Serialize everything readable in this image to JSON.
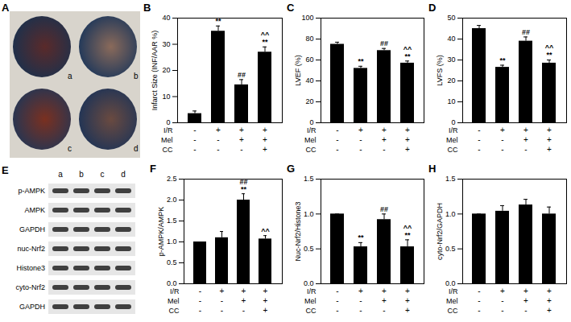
{
  "chart_data": [
    {
      "type": "bar",
      "panel": "B",
      "ylabel": "Infarct Size (INF/AAR %)",
      "categories": [
        null,
        null,
        null,
        null
      ],
      "values": [
        3.5,
        35,
        14.5,
        27
      ],
      "errors": [
        1,
        2,
        2,
        2
      ],
      "color": "#000000",
      "annotations": [
        [],
        [
          "**"
        ],
        [
          "##"
        ],
        [
          "^^",
          "**"
        ]
      ],
      "conditions": [
        {
          "name": "I/R",
          "signs": [
            "-",
            "+",
            "+",
            "+"
          ]
        },
        {
          "name": "Mel",
          "signs": [
            "-",
            "-",
            "+",
            "+"
          ]
        },
        {
          "name": "CC",
          "signs": [
            "-",
            "-",
            "-",
            "+"
          ]
        }
      ],
      "ylim": [
        0,
        40
      ],
      "yticks": [
        0,
        10,
        20,
        30,
        40
      ]
    },
    {
      "type": "bar",
      "panel": "C",
      "ylabel": "LVEF (%)",
      "categories": [
        null,
        null,
        null,
        null
      ],
      "values": [
        75,
        52,
        69,
        57
      ],
      "errors": [
        2,
        2,
        2,
        2
      ],
      "color": "#000000",
      "annotations": [
        [],
        [
          "**"
        ],
        [
          "##"
        ],
        [
          "^^",
          "**"
        ]
      ],
      "conditions": [
        {
          "name": "I/R",
          "signs": [
            "-",
            "+",
            "+",
            "+"
          ]
        },
        {
          "name": "Mel",
          "signs": [
            "-",
            "-",
            "+",
            "+"
          ]
        },
        {
          "name": "CC",
          "signs": [
            "-",
            "-",
            "-",
            "+"
          ]
        }
      ],
      "ylim": [
        0,
        100
      ],
      "yticks": [
        0,
        20,
        40,
        60,
        80,
        100
      ]
    },
    {
      "type": "bar",
      "panel": "D",
      "ylabel": "LVFS (%)",
      "categories": [
        null,
        null,
        null,
        null
      ],
      "values": [
        45,
        26.5,
        39,
        28.5
      ],
      "errors": [
        1.5,
        1,
        2,
        1.5
      ],
      "color": "#000000",
      "annotations": [
        [],
        [
          "**"
        ],
        [
          "##"
        ],
        [
          "^^",
          "**"
        ]
      ],
      "conditions": [
        {
          "name": "I/R",
          "signs": [
            "-",
            "+",
            "+",
            "+"
          ]
        },
        {
          "name": "Mel",
          "signs": [
            "-",
            "-",
            "+",
            "+"
          ]
        },
        {
          "name": "CC",
          "signs": [
            "-",
            "-",
            "-",
            "+"
          ]
        }
      ],
      "ylim": [
        0,
        50
      ],
      "yticks": [
        0,
        10,
        20,
        30,
        40,
        50
      ]
    },
    {
      "type": "bar",
      "panel": "F",
      "ylabel": "p-AMPK/AMPK",
      "categories": [
        null,
        null,
        null,
        null
      ],
      "values": [
        1,
        1.1,
        2.0,
        1.07
      ],
      "errors": [
        0,
        0.15,
        0.15,
        0.08
      ],
      "color": "#000000",
      "annotations": [
        [],
        [],
        [
          "##",
          "**"
        ],
        [
          "^^"
        ]
      ],
      "conditions": [
        {
          "name": "I/R",
          "signs": [
            "-",
            "+",
            "+",
            "+"
          ]
        },
        {
          "name": "Mel",
          "signs": [
            "-",
            "-",
            "+",
            "+"
          ]
        },
        {
          "name": "CC",
          "signs": [
            "-",
            "-",
            "-",
            "+"
          ]
        }
      ],
      "ylim": [
        0,
        2.5
      ],
      "yticks": [
        {
          "value": 0,
          "label": "0.0"
        },
        0.5,
        {
          "value": 1,
          "label": "1.0"
        },
        1.5,
        {
          "value": 2,
          "label": "2.0"
        },
        2.5
      ]
    },
    {
      "type": "bar",
      "panel": "G",
      "ylabel": "Nuc-Nrf2/Histone3",
      "categories": [
        null,
        null,
        null,
        null
      ],
      "values": [
        1,
        0.53,
        0.92,
        0.53
      ],
      "errors": [
        0,
        0.06,
        0.08,
        0.1
      ],
      "color": "#000000",
      "annotations": [
        [],
        [
          "**"
        ],
        [
          "##"
        ],
        [
          "^^",
          "**"
        ]
      ],
      "conditions": [
        {
          "name": "I/R",
          "signs": [
            "-",
            "+",
            "+",
            "+"
          ]
        },
        {
          "name": "Mel",
          "signs": [
            "-",
            "-",
            "+",
            "+"
          ]
        },
        {
          "name": "CC",
          "signs": [
            "-",
            "-",
            "-",
            "+"
          ]
        }
      ],
      "ylim": [
        0,
        1.5
      ],
      "yticks": [
        {
          "value": 0,
          "label": "0.0"
        },
        0.5,
        {
          "value": 1,
          "label": "1.0"
        },
        1.5
      ]
    },
    {
      "type": "bar",
      "panel": "H",
      "ylabel": "cyto-Nrf2/GAPDH",
      "categories": [
        null,
        null,
        null,
        null
      ],
      "values": [
        1,
        1.04,
        1.13,
        1.0
      ],
      "errors": [
        0,
        0.08,
        0.08,
        0.1
      ],
      "color": "#000000",
      "annotations": [
        [],
        [],
        [],
        []
      ],
      "conditions": [
        {
          "name": "I/R",
          "signs": [
            "-",
            "+",
            "+",
            "+"
          ]
        },
        {
          "name": "Mel",
          "signs": [
            "-",
            "-",
            "+",
            "+"
          ]
        },
        {
          "name": "CC",
          "signs": [
            "-",
            "-",
            "-",
            "+"
          ]
        }
      ],
      "ylim": [
        0,
        1.5
      ],
      "yticks": [
        {
          "value": 0,
          "label": "0.0"
        },
        0.5,
        {
          "value": 1,
          "label": "1.0"
        },
        1.5
      ]
    }
  ],
  "panel_A": {
    "panel": "A",
    "labels": [
      "a",
      "b",
      "c",
      "d"
    ]
  },
  "panel_E": {
    "panel": "E",
    "lanes": [
      "a",
      "b",
      "c",
      "d"
    ],
    "rows": [
      "p-AMPK",
      "AMPK",
      "GAPDH",
      "nuc-Nrf2",
      "Histone3",
      "cyto-Nrf2",
      "GAPDH"
    ]
  }
}
